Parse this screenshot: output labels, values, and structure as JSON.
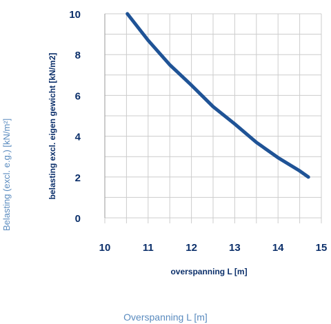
{
  "outer_labels": {
    "ylabel": "Belasting (excl. e.g.) [kN/m²]",
    "xlabel": "Overspanning L [m]"
  },
  "chart_data": {
    "type": "line",
    "xlabel": "overspanning L [m]",
    "ylabel": "belasting excl. eigen gewicht [kN/m2]",
    "xlim": [
      10,
      15
    ],
    "ylim": [
      0,
      10
    ],
    "xticks": [
      10,
      11,
      12,
      13,
      14,
      15
    ],
    "yticks": [
      0,
      2,
      4,
      6,
      8,
      10
    ],
    "grid": true,
    "series": [
      {
        "color": "#1f5396",
        "x": [
          10.52,
          11.0,
          11.5,
          12.0,
          12.5,
          13.0,
          13.5,
          14.0,
          14.5,
          14.7
        ],
        "y": [
          10.0,
          8.7,
          7.5,
          6.5,
          5.45,
          4.6,
          3.7,
          2.95,
          2.3,
          2.0
        ]
      }
    ],
    "colors": {
      "axis_text": "#0b2f6a",
      "grid": "#cccccc",
      "outer_text": "#5a8bbf"
    }
  }
}
